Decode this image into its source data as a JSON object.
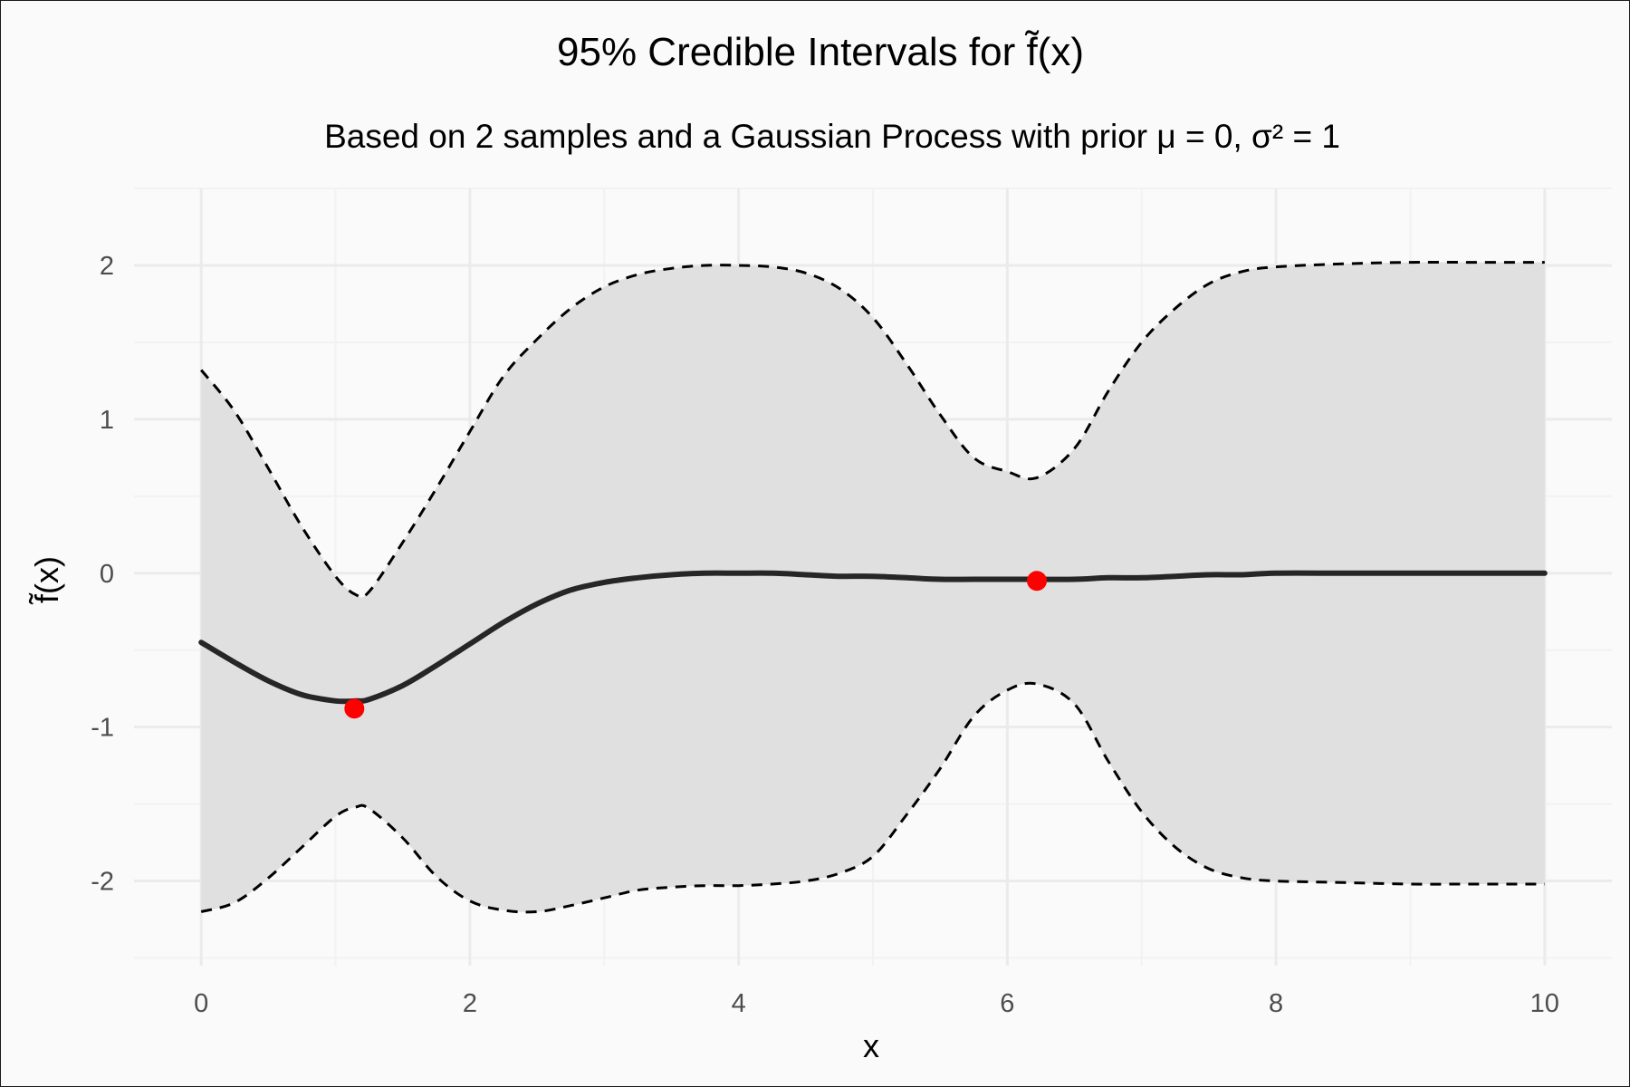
{
  "chart_data": {
    "type": "line",
    "title": "95% Credible Intervals for f̃(x)",
    "subtitle": "Based on 2 samples and a Gaussian Process with prior μ = 0, σ² = 1",
    "xlabel": "x",
    "ylabel": "f̃(x)",
    "xlim": [
      -0.5,
      10.5
    ],
    "ylim": [
      -2.55,
      2.5
    ],
    "x_ticks": [
      0,
      2,
      4,
      6,
      8,
      10
    ],
    "y_ticks": [
      -2,
      -1,
      0,
      1,
      2
    ],
    "x_tick_labels": [
      "0",
      "2",
      "4",
      "6",
      "8",
      "10"
    ],
    "y_tick_labels": [
      "-2",
      "-1",
      "0",
      "1",
      "2"
    ],
    "grid": true,
    "x": [
      0,
      0.25,
      0.5,
      0.75,
      1,
      1.15,
      1.25,
      1.5,
      1.75,
      2,
      2.25,
      2.5,
      2.75,
      3,
      3.25,
      3.5,
      3.75,
      4,
      4.25,
      4.5,
      4.75,
      5,
      5.25,
      5.5,
      5.75,
      6,
      6.22,
      6.5,
      6.75,
      7,
      7.25,
      7.5,
      7.75,
      8,
      8.5,
      9,
      9.5,
      10
    ],
    "series": [
      {
        "role": "upper-bound",
        "style": "dashed",
        "values": [
          1.32,
          1.05,
          0.68,
          0.3,
          -0.02,
          -0.14,
          -0.12,
          0.2,
          0.55,
          0.92,
          1.28,
          1.52,
          1.72,
          1.86,
          1.94,
          1.98,
          2.0,
          2.0,
          1.99,
          1.95,
          1.85,
          1.66,
          1.36,
          1.03,
          0.75,
          0.66,
          0.62,
          0.81,
          1.18,
          1.5,
          1.72,
          1.88,
          1.96,
          1.99,
          2.01,
          2.02,
          2.02,
          2.02
        ]
      },
      {
        "role": "posterior-mean",
        "style": "solid",
        "values": [
          -0.45,
          -0.58,
          -0.7,
          -0.79,
          -0.83,
          -0.83,
          -0.82,
          -0.73,
          -0.6,
          -0.46,
          -0.32,
          -0.2,
          -0.11,
          -0.06,
          -0.03,
          -0.01,
          0.0,
          0.0,
          0.0,
          -0.01,
          -0.02,
          -0.02,
          -0.03,
          -0.04,
          -0.04,
          -0.04,
          -0.04,
          -0.04,
          -0.03,
          -0.03,
          -0.02,
          -0.01,
          -0.01,
          0.0,
          0.0,
          0.0,
          0.0,
          0.0
        ]
      },
      {
        "role": "lower-bound",
        "style": "dashed",
        "values": [
          -2.2,
          -2.14,
          -1.98,
          -1.78,
          -1.58,
          -1.52,
          -1.53,
          -1.72,
          -1.97,
          -2.13,
          -2.19,
          -2.2,
          -2.16,
          -2.11,
          -2.06,
          -2.04,
          -2.03,
          -2.03,
          -2.02,
          -2.0,
          -1.95,
          -1.84,
          -1.57,
          -1.27,
          -0.93,
          -0.76,
          -0.72,
          -0.85,
          -1.22,
          -1.55,
          -1.78,
          -1.92,
          -1.98,
          -2.0,
          -2.01,
          -2.02,
          -2.02,
          -2.02
        ]
      }
    ],
    "points": [
      {
        "x": 1.14,
        "y": -0.88
      },
      {
        "x": 6.22,
        "y": -0.05
      }
    ],
    "colors": {
      "band": "#e0e0e0",
      "mean": "#262626",
      "bound": "#000000",
      "point": "#ff0000",
      "grid_major": "#ebebeb",
      "grid_minor": "#f2f2f2"
    }
  }
}
